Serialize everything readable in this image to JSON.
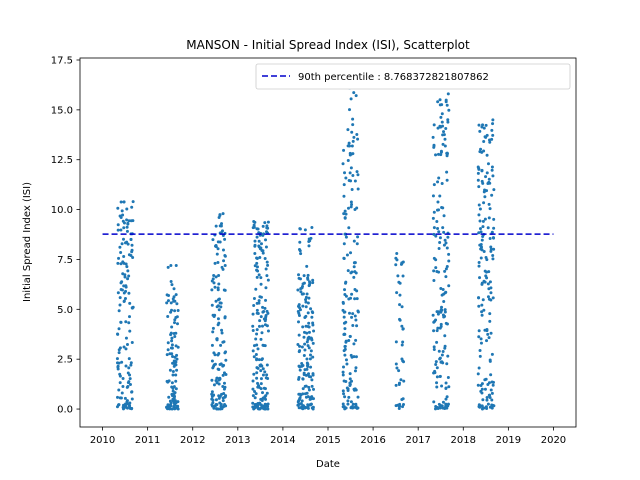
{
  "chart_data": {
    "type": "scatter",
    "title": "MANSON - Initial Spread Index (ISI), Scatterplot",
    "xlabel": "Date",
    "ylabel": "Initial Spread Index (ISI)",
    "xlim": [
      2009.5,
      2020.5
    ],
    "ylim": [
      -0.9,
      17.6
    ],
    "x_ticks": [
      2010,
      2011,
      2012,
      2013,
      2014,
      2015,
      2016,
      2017,
      2018,
      2019,
      2020
    ],
    "y_ticks": [
      0.0,
      2.5,
      5.0,
      7.5,
      10.0,
      12.5,
      15.0,
      17.5
    ],
    "y_tick_labels": [
      "0.0",
      "2.5",
      "5.0",
      "7.5",
      "10.0",
      "12.5",
      "15.0",
      "17.5"
    ],
    "point_color": "#1f77b4",
    "reference_line": {
      "label": "90th percentile : 8.768372821807862",
      "value": 8.768372821807862,
      "color": "#0000cc",
      "style": "dashed"
    },
    "legend_position": "top-right",
    "seasons": [
      {
        "start": 2010.33,
        "end": 2010.68,
        "max": 10.4,
        "n": 150,
        "seed": 11,
        "dist": "wide"
      },
      {
        "start": 2011.42,
        "end": 2011.68,
        "max": 7.2,
        "n": 110,
        "seed": 23,
        "dist": "low"
      },
      {
        "start": 2012.42,
        "end": 2012.74,
        "max": 9.8,
        "n": 150,
        "seed": 37,
        "dist": "low"
      },
      {
        "start": 2013.33,
        "end": 2013.68,
        "max": 9.4,
        "n": 190,
        "seed": 41,
        "dist": "low"
      },
      {
        "start": 2014.33,
        "end": 2014.68,
        "max": 9.1,
        "n": 180,
        "seed": 53,
        "dist": "mid"
      },
      {
        "start": 2015.33,
        "end": 2015.68,
        "max": 16.4,
        "n": 170,
        "seed": 67,
        "dist": "wide"
      },
      {
        "start": 2016.5,
        "end": 2016.68,
        "max": 7.8,
        "n": 45,
        "seed": 71,
        "dist": "mid"
      },
      {
        "start": 2017.33,
        "end": 2017.68,
        "max": 15.8,
        "n": 170,
        "seed": 83,
        "dist": "wide"
      },
      {
        "start": 2018.33,
        "end": 2018.68,
        "max": 14.5,
        "n": 180,
        "seed": 97,
        "dist": "wide"
      }
    ]
  }
}
